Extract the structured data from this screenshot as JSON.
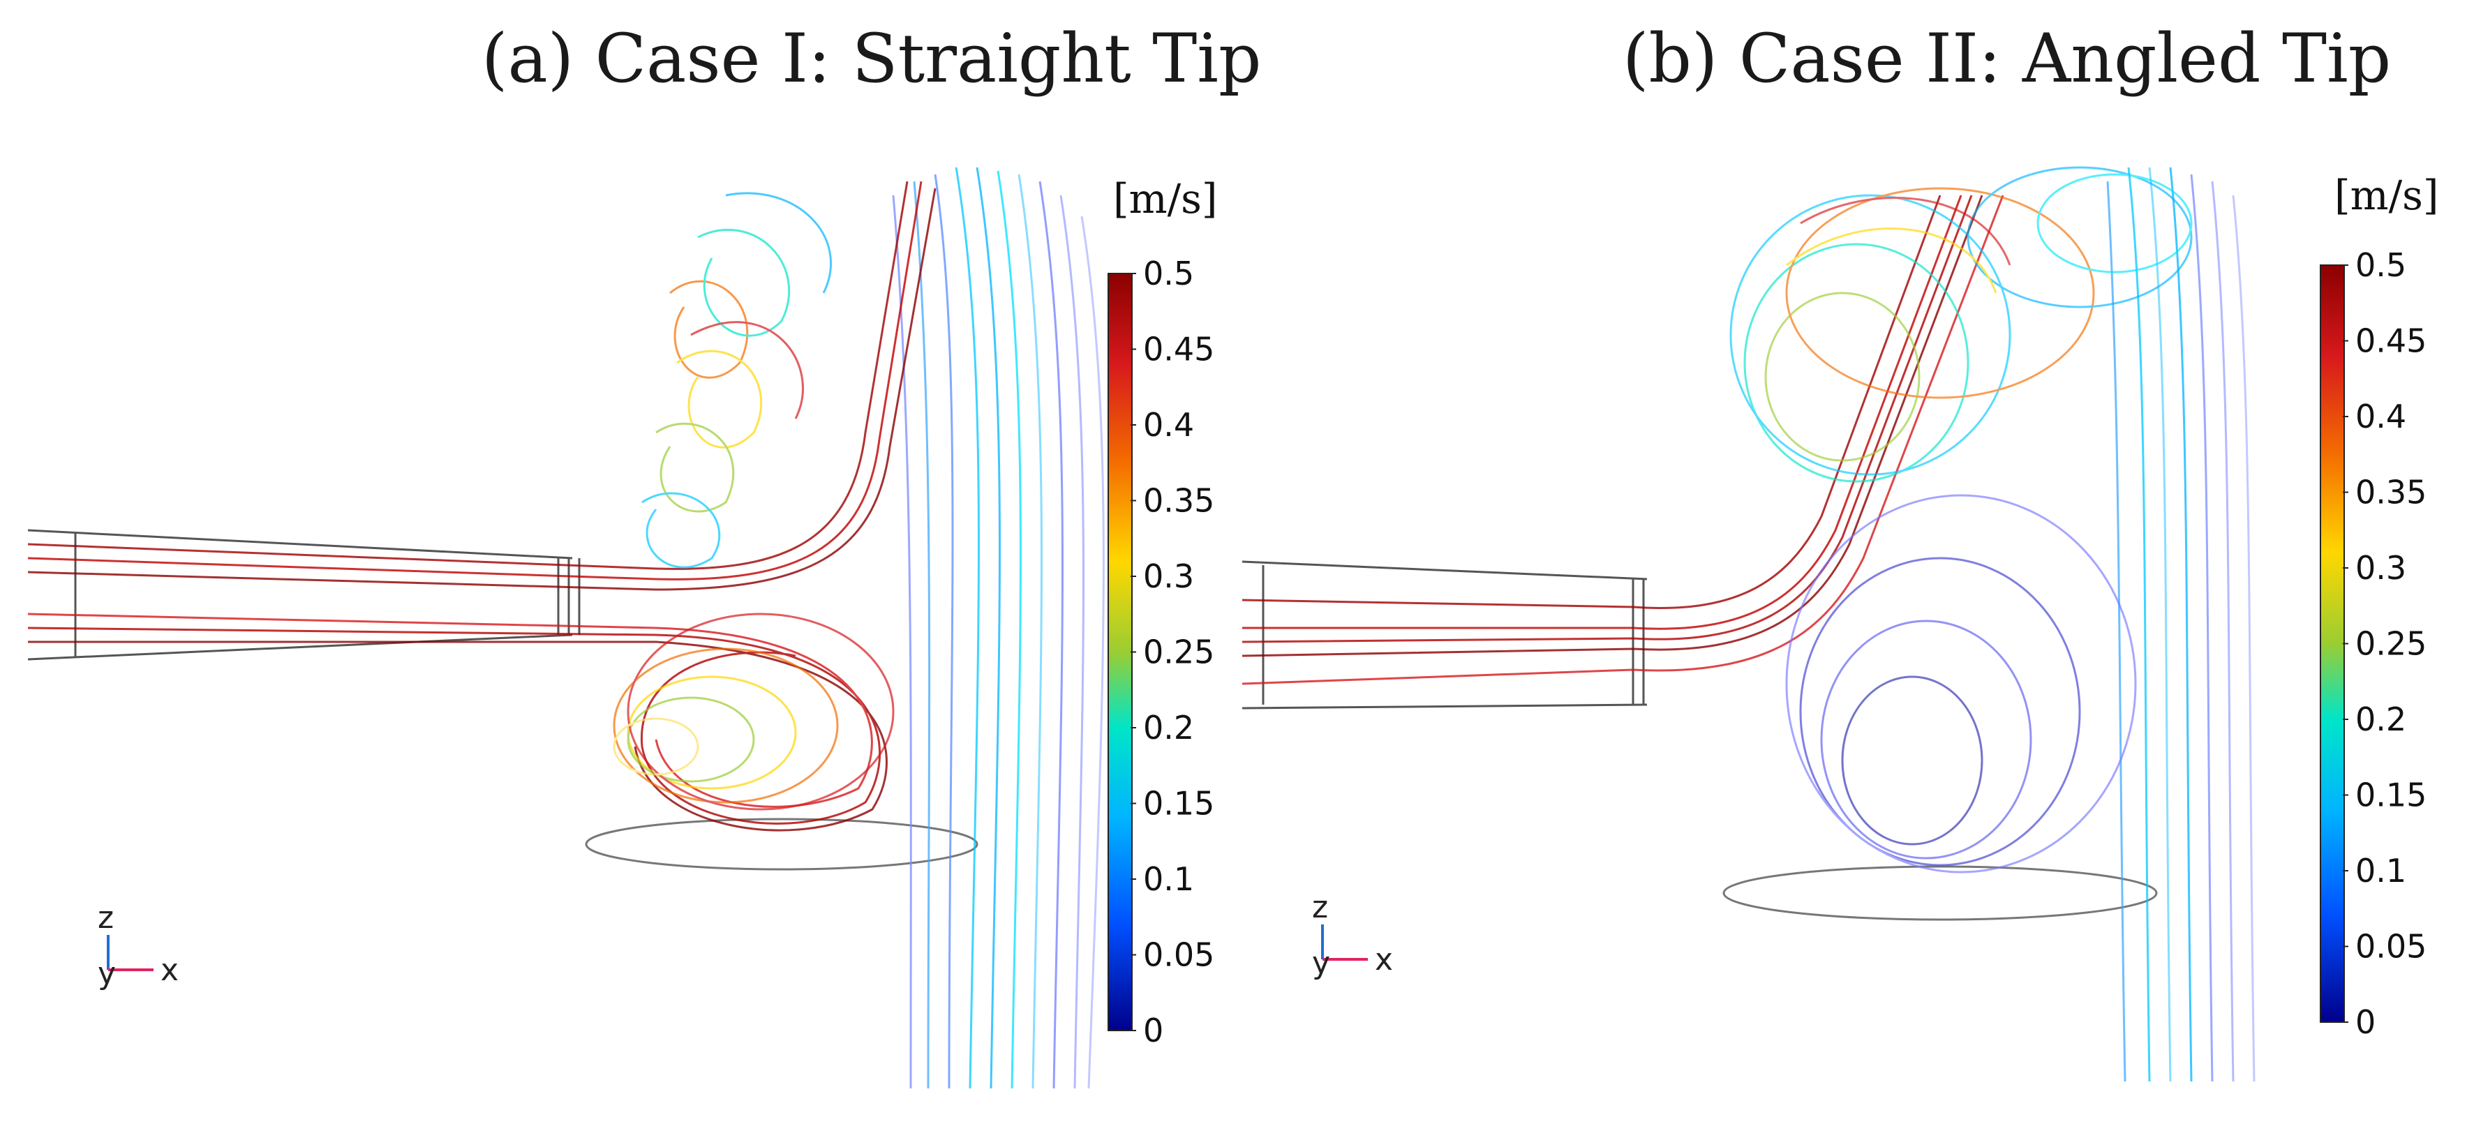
{
  "figure": {
    "panels": [
      {
        "id": "a",
        "title": "(a) Case I: Straight Tip"
      },
      {
        "id": "b",
        "title": "(b) Case II: Angled Tip"
      }
    ]
  },
  "colorbar": {
    "unit": "[m/s]",
    "ticks": [
      "0.5",
      "0.45",
      "0.4",
      "0.35",
      "0.3",
      "0.25",
      "0.2",
      "0.15",
      "0.1",
      "0.05",
      "0"
    ],
    "colors": [
      "#8b0000",
      "#d7191c",
      "#f46d00",
      "#ffd700",
      "#9acd32",
      "#00e5c8",
      "#00b4ff",
      "#0050ff",
      "#00008b"
    ]
  },
  "axes": {
    "z": "z",
    "y": "y",
    "x": "x"
  }
}
